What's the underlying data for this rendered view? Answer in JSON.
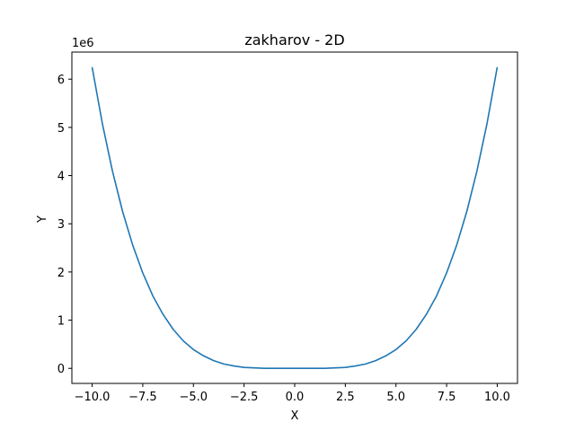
{
  "chart_data": {
    "type": "line",
    "title": "zakharov - 2D",
    "xlabel": "X",
    "ylabel": "Y",
    "y_offset_label": "1e6",
    "xlim": [
      -11.0,
      11.0
    ],
    "ylim": [
      -0.3125,
      6.5625
    ],
    "x_ticks": [
      -10.0,
      -7.5,
      -5.0,
      -2.5,
      0.0,
      2.5,
      5.0,
      7.5,
      10.0
    ],
    "x_tick_labels": [
      "−10.0",
      "−7.5",
      "−5.0",
      "−2.5",
      "0.0",
      "2.5",
      "5.0",
      "7.5",
      "10.0"
    ],
    "y_ticks": [
      0,
      1,
      2,
      3,
      4,
      5,
      6
    ],
    "y_tick_labels": [
      "0",
      "1",
      "2",
      "3",
      "4",
      "5",
      "6"
    ],
    "grid": false,
    "series": [
      {
        "color": "#1f77b4",
        "x": [
          -10.0,
          -9.5,
          -9.0,
          -8.5,
          -8.0,
          -7.5,
          -7.0,
          -6.5,
          -6.0,
          -5.5,
          -5.0,
          -4.5,
          -4.0,
          -3.5,
          -3.0,
          -2.5,
          -2.0,
          -1.5,
          -1.0,
          -0.5,
          0.0,
          0.5,
          1.0,
          1.5,
          2.0,
          2.5,
          3.0,
          3.5,
          4.0,
          4.5,
          5.0,
          5.5,
          6.0,
          6.5,
          7.0,
          7.5,
          8.0,
          8.5,
          9.0,
          9.5,
          10.0
        ],
        "y": [
          6.25,
          5.09,
          4.1,
          3.26,
          2.56,
          1.98,
          1.5,
          1.12,
          0.81,
          0.57,
          0.39,
          0.26,
          0.16,
          0.09,
          0.05,
          0.02,
          0.01,
          0.0,
          0.0,
          0.0,
          0.0,
          0.0,
          0.0,
          0.0,
          0.01,
          0.02,
          0.05,
          0.09,
          0.16,
          0.26,
          0.39,
          0.57,
          0.81,
          1.12,
          1.5,
          1.98,
          2.56,
          3.26,
          4.1,
          5.09,
          6.25
        ]
      }
    ]
  }
}
